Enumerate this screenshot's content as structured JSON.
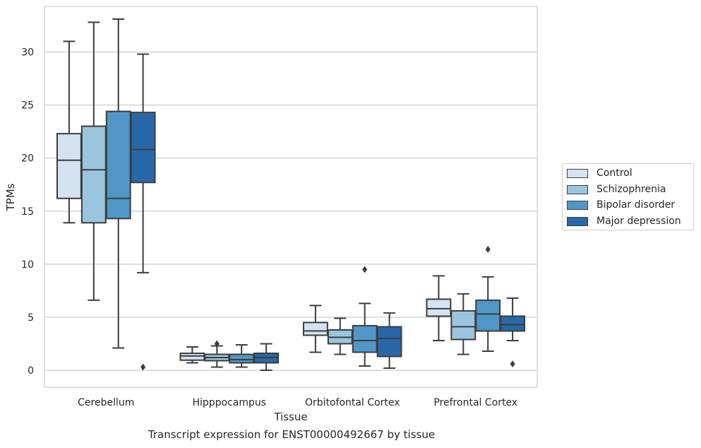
{
  "chart_data": {
    "type": "box",
    "caption": "Transcript expression for ENST00000492667 by tissue",
    "xlabel": "Tissue",
    "ylabel": "TPMs",
    "ylim": [
      -1.6,
      34.3
    ],
    "yticks": [
      0,
      5,
      10,
      15,
      20,
      25,
      30
    ],
    "grid": "horizontal",
    "legend_position": "right",
    "categories": [
      "Cerebellum",
      "Hipppocampus",
      "Orbitofontal Cortex",
      "Prefrontal Cortex"
    ],
    "series": [
      {
        "name": "Control",
        "color": "#d3e3f2",
        "boxes": [
          {
            "whisker_low": 13.9,
            "q1": 16.2,
            "median": 19.8,
            "q3": 22.3,
            "whisker_high": 31.0,
            "outliers": []
          },
          {
            "whisker_low": 0.7,
            "q1": 0.95,
            "median": 1.35,
            "q3": 1.6,
            "whisker_high": 2.2,
            "outliers": []
          },
          {
            "whisker_low": 1.7,
            "q1": 3.3,
            "median": 3.7,
            "q3": 4.5,
            "whisker_high": 6.1,
            "outliers": []
          },
          {
            "whisker_low": 2.8,
            "q1": 5.1,
            "median": 5.8,
            "q3": 6.7,
            "whisker_high": 8.9,
            "outliers": []
          }
        ]
      },
      {
        "name": "Schizophrenia",
        "color": "#9ac5df",
        "boxes": [
          {
            "whisker_low": 6.6,
            "q1": 13.9,
            "median": 18.9,
            "q3": 23.0,
            "whisker_high": 32.8,
            "outliers": []
          },
          {
            "whisker_low": 0.3,
            "q1": 0.9,
            "median": 1.2,
            "q3": 1.5,
            "whisker_high": 2.3,
            "outliers": [
              2.5
            ]
          },
          {
            "whisker_low": 1.5,
            "q1": 2.5,
            "median": 3.1,
            "q3": 3.8,
            "whisker_high": 4.9,
            "outliers": []
          },
          {
            "whisker_low": 1.5,
            "q1": 2.9,
            "median": 4.1,
            "q3": 5.6,
            "whisker_high": 7.2,
            "outliers": []
          }
        ]
      },
      {
        "name": "Bipolar disorder",
        "color": "#5096c7",
        "boxes": [
          {
            "whisker_low": 2.1,
            "q1": 14.3,
            "median": 16.2,
            "q3": 24.4,
            "whisker_high": 33.1,
            "outliers": []
          },
          {
            "whisker_low": 0.3,
            "q1": 0.7,
            "median": 1.0,
            "q3": 1.5,
            "whisker_high": 2.4,
            "outliers": []
          },
          {
            "whisker_low": 0.4,
            "q1": 1.7,
            "median": 2.8,
            "q3": 4.2,
            "whisker_high": 6.3,
            "outliers": [
              9.5
            ]
          },
          {
            "whisker_low": 1.8,
            "q1": 3.7,
            "median": 5.3,
            "q3": 6.6,
            "whisker_high": 8.8,
            "outliers": [
              11.4
            ]
          }
        ]
      },
      {
        "name": "Major depression",
        "color": "#2868a9",
        "boxes": [
          {
            "whisker_low": 9.2,
            "q1": 17.7,
            "median": 20.8,
            "q3": 24.3,
            "whisker_high": 29.8,
            "outliers": [
              0.3
            ]
          },
          {
            "whisker_low": 0.0,
            "q1": 0.7,
            "median": 1.2,
            "q3": 1.6,
            "whisker_high": 2.5,
            "outliers": []
          },
          {
            "whisker_low": 0.2,
            "q1": 1.3,
            "median": 3.0,
            "q3": 4.1,
            "whisker_high": 5.4,
            "outliers": []
          },
          {
            "whisker_low": 2.8,
            "q1": 3.7,
            "median": 4.3,
            "q3": 5.1,
            "whisker_high": 6.8,
            "outliers": [
              0.6
            ]
          }
        ]
      }
    ]
  }
}
